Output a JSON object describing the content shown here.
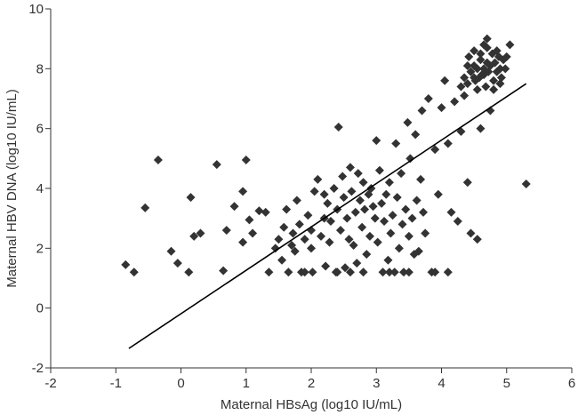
{
  "chart_data": {
    "type": "scatter",
    "title": "",
    "xlabel": "Maternal HBsAg (log10 IU/mL)",
    "ylabel": "Maternal HBV DNA (log10 IU/mL)",
    "xlim": [
      -2,
      6
    ],
    "ylim": [
      -2,
      10
    ],
    "x_ticks": [
      "-2",
      "-1",
      "0",
      "1",
      "2",
      "3",
      "4",
      "5",
      "6"
    ],
    "y_ticks": [
      "-2",
      "0",
      "2",
      "4",
      "6",
      "8",
      "10"
    ],
    "grid": false,
    "legend": "none",
    "marker": "diamond",
    "marker_color": "#333333",
    "fit_line": {
      "x": [
        -0.8,
        5.3
      ],
      "y": [
        -1.35,
        7.5
      ]
    },
    "points": [
      [
        -0.85,
        1.45
      ],
      [
        -0.72,
        1.2
      ],
      [
        -0.55,
        3.35
      ],
      [
        -0.35,
        4.95
      ],
      [
        -0.15,
        1.9
      ],
      [
        -0.05,
        1.5
      ],
      [
        0.15,
        3.7
      ],
      [
        0.2,
        2.4
      ],
      [
        0.3,
        2.5
      ],
      [
        0.12,
        1.2
      ],
      [
        0.55,
        4.8
      ],
      [
        0.65,
        1.25
      ],
      [
        0.7,
        2.6
      ],
      [
        0.82,
        3.4
      ],
      [
        1.0,
        4.95
      ],
      [
        0.95,
        2.2
      ],
      [
        1.05,
        2.95
      ],
      [
        1.1,
        2.5
      ],
      [
        0.95,
        3.9
      ],
      [
        1.2,
        3.25
      ],
      [
        1.3,
        3.2
      ],
      [
        1.35,
        1.2
      ],
      [
        1.45,
        2.0
      ],
      [
        1.5,
        2.3
      ],
      [
        1.55,
        1.6
      ],
      [
        1.58,
        2.7
      ],
      [
        1.62,
        3.3
      ],
      [
        1.65,
        1.2
      ],
      [
        1.7,
        2.1
      ],
      [
        1.72,
        2.5
      ],
      [
        1.75,
        1.9
      ],
      [
        1.78,
        3.6
      ],
      [
        1.82,
        2.8
      ],
      [
        1.85,
        1.2
      ],
      [
        1.9,
        2.3
      ],
      [
        1.95,
        3.1
      ],
      [
        2.0,
        2.6
      ],
      [
        2.02,
        1.2
      ],
      [
        2.05,
        3.9
      ],
      [
        2.1,
        4.3
      ],
      [
        2.15,
        2.4
      ],
      [
        2.2,
        3.0
      ],
      [
        2.22,
        1.4
      ],
      [
        2.25,
        3.5
      ],
      [
        2.28,
        2.2
      ],
      [
        2.3,
        2.9
      ],
      [
        2.35,
        4.0
      ],
      [
        2.38,
        1.2
      ],
      [
        2.4,
        3.3
      ],
      [
        2.42,
        6.05
      ],
      [
        2.45,
        2.6
      ],
      [
        2.48,
        4.4
      ],
      [
        2.5,
        3.7
      ],
      [
        2.52,
        1.35
      ],
      [
        2.55,
        3.0
      ],
      [
        2.58,
        2.3
      ],
      [
        2.6,
        4.7
      ],
      [
        2.62,
        3.9
      ],
      [
        2.65,
        2.1
      ],
      [
        2.68,
        3.2
      ],
      [
        2.7,
        1.5
      ],
      [
        2.72,
        4.5
      ],
      [
        2.75,
        3.6
      ],
      [
        2.78,
        2.7
      ],
      [
        2.8,
        4.2
      ],
      [
        2.82,
        3.3
      ],
      [
        2.85,
        1.8
      ],
      [
        2.88,
        3.8
      ],
      [
        2.9,
        2.4
      ],
      [
        2.92,
        4.0
      ],
      [
        2.95,
        3.4
      ],
      [
        2.98,
        3.0
      ],
      [
        3.0,
        5.6
      ],
      [
        3.02,
        2.2
      ],
      [
        3.05,
        4.6
      ],
      [
        3.08,
        3.5
      ],
      [
        3.1,
        1.2
      ],
      [
        3.12,
        2.9
      ],
      [
        3.15,
        3.8
      ],
      [
        3.18,
        1.6
      ],
      [
        3.2,
        4.2
      ],
      [
        3.22,
        2.5
      ],
      [
        3.25,
        3.1
      ],
      [
        3.28,
        1.2
      ],
      [
        3.3,
        5.5
      ],
      [
        3.32,
        3.7
      ],
      [
        3.35,
        2.0
      ],
      [
        3.38,
        4.5
      ],
      [
        3.4,
        2.8
      ],
      [
        3.42,
        1.2
      ],
      [
        3.45,
        3.3
      ],
      [
        3.48,
        6.2
      ],
      [
        3.5,
        2.4
      ],
      [
        3.52,
        5.0
      ],
      [
        3.55,
        3.0
      ],
      [
        3.58,
        1.8
      ],
      [
        3.6,
        5.8
      ],
      [
        3.62,
        3.6
      ],
      [
        3.65,
        1.9
      ],
      [
        3.68,
        4.3
      ],
      [
        3.7,
        6.6
      ],
      [
        3.72,
        3.2
      ],
      [
        3.75,
        2.5
      ],
      [
        3.8,
        7.0
      ],
      [
        3.85,
        1.2
      ],
      [
        3.9,
        5.3
      ],
      [
        3.95,
        3.8
      ],
      [
        4.0,
        6.7
      ],
      [
        4.05,
        7.6
      ],
      [
        4.1,
        5.5
      ],
      [
        4.15,
        3.2
      ],
      [
        4.2,
        6.9
      ],
      [
        4.25,
        2.9
      ],
      [
        4.3,
        5.9
      ],
      [
        4.35,
        7.1
      ],
      [
        4.4,
        4.2
      ],
      [
        4.45,
        2.5
      ],
      [
        4.5,
        7.7
      ],
      [
        4.55,
        2.3
      ],
      [
        4.6,
        6.0
      ],
      [
        4.65,
        7.8
      ],
      [
        4.7,
        8.2
      ],
      [
        4.75,
        6.6
      ],
      [
        4.8,
        7.3
      ],
      [
        4.85,
        8.6
      ],
      [
        4.9,
        7.5
      ],
      [
        5.0,
        8.4
      ],
      [
        5.05,
        8.8
      ],
      [
        5.3,
        4.15
      ],
      [
        4.4,
        7.5
      ],
      [
        4.45,
        7.9
      ],
      [
        4.5,
        8.1
      ],
      [
        4.52,
        7.6
      ],
      [
        4.55,
        8.0
      ],
      [
        4.58,
        7.7
      ],
      [
        4.6,
        8.3
      ],
      [
        4.62,
        7.8
      ],
      [
        4.65,
        8.0
      ],
      [
        4.68,
        7.4
      ],
      [
        4.7,
        8.7
      ],
      [
        4.72,
        7.9
      ],
      [
        4.75,
        8.1
      ],
      [
        4.78,
        8.5
      ],
      [
        4.8,
        7.6
      ],
      [
        4.82,
        8.2
      ],
      [
        4.85,
        7.9
      ],
      [
        4.88,
        8.4
      ],
      [
        4.9,
        8.0
      ],
      [
        4.92,
        7.7
      ],
      [
        4.95,
        8.3
      ],
      [
        4.98,
        8.0
      ],
      [
        4.6,
        8.5
      ],
      [
        4.65,
        8.8
      ],
      [
        4.7,
        9.0
      ],
      [
        4.5,
        8.6
      ],
      [
        4.55,
        7.3
      ],
      [
        4.4,
        8.1
      ],
      [
        4.35,
        7.7
      ],
      [
        4.3,
        7.4
      ],
      [
        4.42,
        8.4
      ],
      [
        3.2,
        1.2
      ],
      [
        3.5,
        1.2
      ],
      [
        3.9,
        1.2
      ],
      [
        4.1,
        1.2
      ],
      [
        2.8,
        1.2
      ],
      [
        2.6,
        1.2
      ],
      [
        2.4,
        1.2
      ],
      [
        2.2,
        3.8
      ],
      [
        2.0,
        2.0
      ],
      [
        1.9,
        1.2
      ]
    ]
  }
}
